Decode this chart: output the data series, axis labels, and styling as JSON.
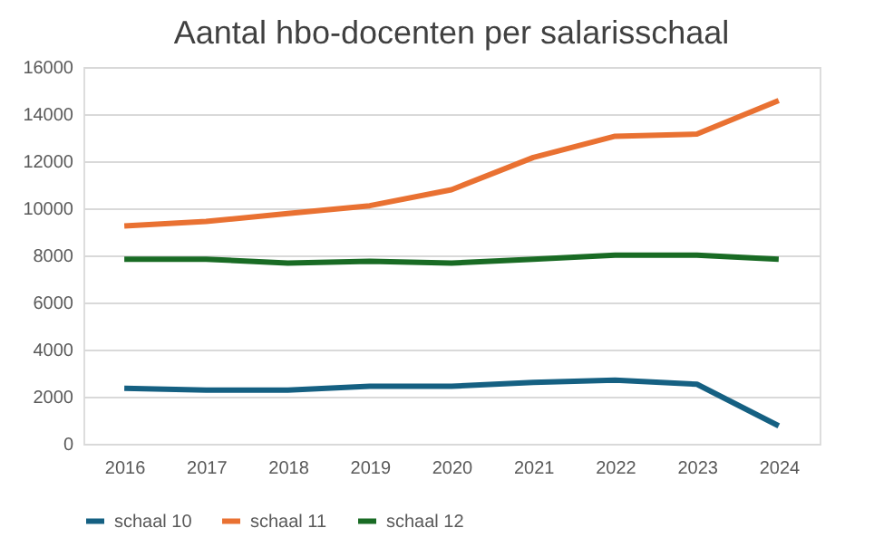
{
  "chart_data": {
    "type": "line",
    "title": "Aantal hbo-docenten per salarisschaal",
    "categories": [
      "2016",
      "2017",
      "2018",
      "2019",
      "2020",
      "2021",
      "2022",
      "2023",
      "2024"
    ],
    "series": [
      {
        "name": "schaal 10",
        "color": "#156082",
        "values": [
          2360,
          2280,
          2280,
          2440,
          2440,
          2610,
          2700,
          2530,
          760
        ]
      },
      {
        "name": "schaal 11",
        "color": "#e97132",
        "values": [
          9250,
          9440,
          9780,
          10110,
          10790,
          12160,
          13060,
          13150,
          14580
        ]
      },
      {
        "name": "schaal 12",
        "color": "#196b24",
        "values": [
          7840,
          7840,
          7670,
          7750,
          7670,
          7840,
          8010,
          8010,
          7840
        ]
      }
    ],
    "ylim": [
      0,
      16000
    ],
    "yticks": [
      0,
      2000,
      4000,
      6000,
      8000,
      10000,
      12000,
      14000,
      16000
    ],
    "grid": "y",
    "legend": "bottom",
    "marker": "none",
    "line_style": "solid"
  }
}
